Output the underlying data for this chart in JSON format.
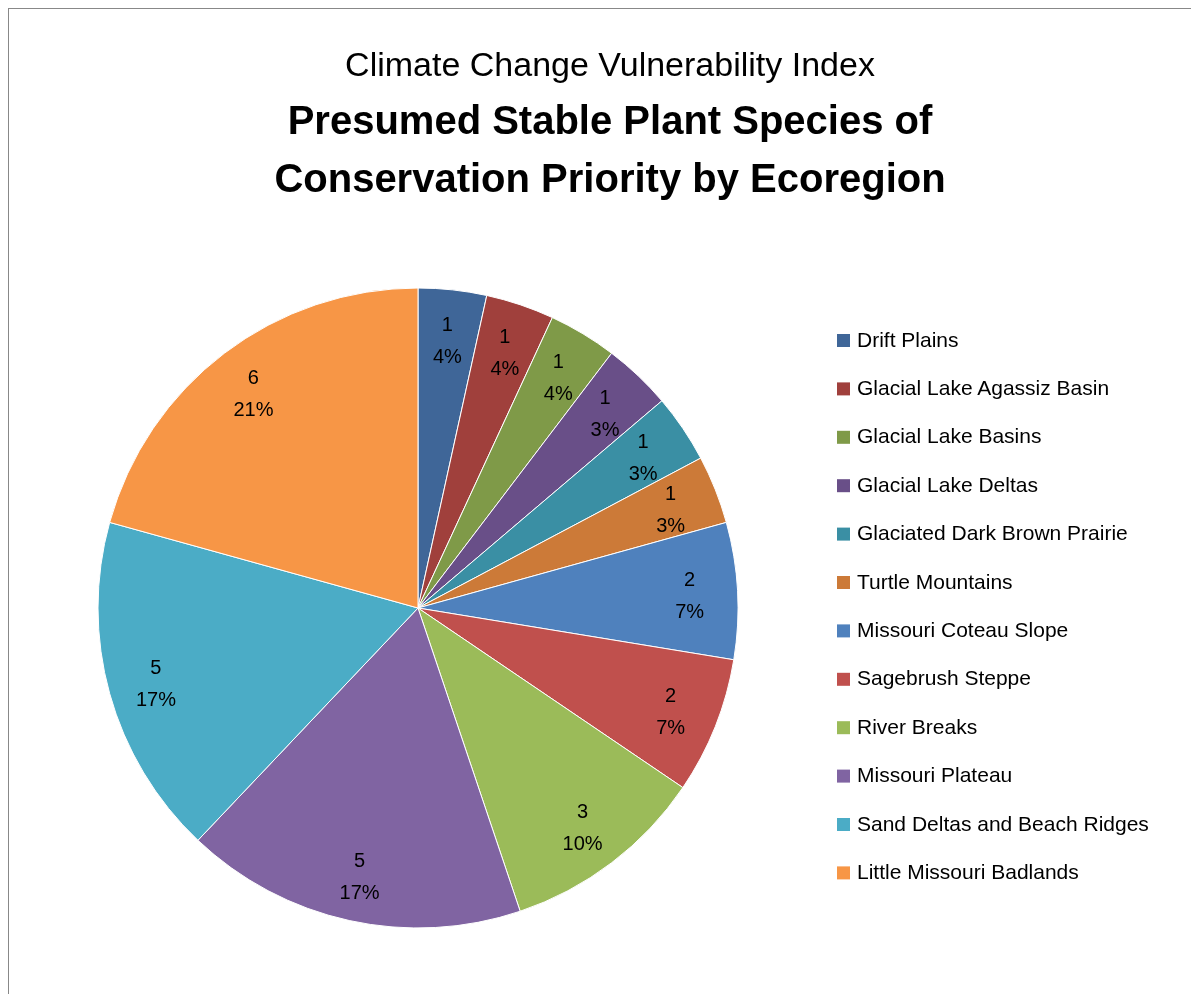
{
  "chart_data": {
    "type": "pie",
    "title": "Climate Change Vulnerability Index",
    "subtitle": "Presumed Stable Plant Species of Conservation Priority by Ecoregion",
    "categories": [
      "Drift Plains",
      "Glacial Lake Agassiz Basin",
      "Glacial Lake Basins",
      "Glacial Lake Deltas",
      "Glaciated Dark Brown Prairie",
      "Turtle Mountains",
      "Missouri Coteau Slope",
      "Sagebrush Steppe",
      "River Breaks",
      "Missouri Plateau",
      "Sand Deltas and Beach Ridges",
      "Little Missouri Badlands"
    ],
    "values": [
      1,
      1,
      1,
      1,
      1,
      1,
      2,
      2,
      3,
      5,
      5,
      6
    ],
    "value_labels": [
      "1\n4%",
      "1\n4%",
      "1\n4%",
      "1\n3%",
      "1\n3%",
      "1\n3%",
      "2\n7%",
      "2\n7%",
      "3\n10%",
      "5\n17%",
      "5\n17%",
      "6\n21%"
    ],
    "colors": [
      "#3f6698",
      "#a0403c",
      "#7f9a48",
      "#694f88",
      "#3a8fa4",
      "#cc7a38",
      "#4f81bd",
      "#c0504d",
      "#9bbb59",
      "#8064a2",
      "#4bacc6",
      "#f79646"
    ],
    "legend": "right"
  }
}
